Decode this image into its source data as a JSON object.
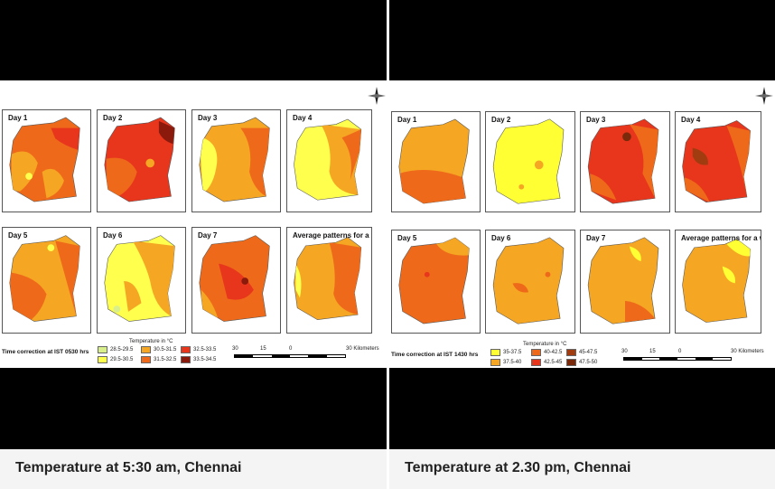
{
  "colors": {
    "morning_ramp": [
      "#d9ef8b",
      "#ffff4d",
      "#f5a623",
      "#ee6a1a",
      "#e8361d",
      "#8b1a0d"
    ],
    "afternoon_ramp": [
      "#ffff33",
      "#f5a623",
      "#ee6a1a",
      "#e8361d",
      "#a03c10",
      "#7a2a0a"
    ]
  },
  "left": {
    "caption": "Temperature at 5:30 am, Chennai",
    "panels": [
      "Day 1",
      "Day 2",
      "Day 3",
      "Day 4",
      "Day 5",
      "Day 6",
      "Day 7",
      "Average patterns for a week"
    ],
    "legend_title": "Temperature in °C",
    "legend": [
      "28.5-29.5",
      "29.5-30.5",
      "30.5-31.5",
      "31.5-32.5",
      "32.5-33.5",
      "33.5-34.5"
    ],
    "time_note": "Time correction at IST 0530 hrs",
    "scale": [
      "30",
      "15",
      "0",
      "30 Kilometers"
    ]
  },
  "right": {
    "caption": "Temperature at 2.30 pm, Chennai",
    "panels": [
      "Day 1",
      "Day 2",
      "Day 3",
      "Day 4",
      "Day 5",
      "Day 6",
      "Day 7",
      "Average patterns for a week"
    ],
    "legend_title": "Temperature in °C",
    "legend": [
      "35-37.5",
      "37.5-40",
      "40-42.5",
      "42.5-45",
      "45-47.5",
      "47.5-50"
    ],
    "time_note": "Time correction at IST 1430 hrs",
    "scale": [
      "30",
      "15",
      "0",
      "30 Kilometers"
    ]
  }
}
